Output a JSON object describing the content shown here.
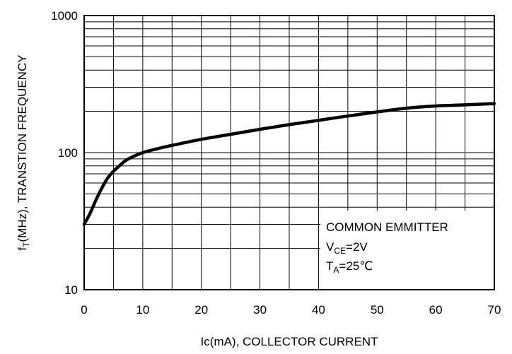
{
  "chart_data": {
    "type": "line",
    "title": "",
    "xlabel": "Ic(mA), COLLECTOR CURRENT",
    "ylabel": {
      "pre": "f",
      "sub": "T",
      "post": "(MHz), TRANSTION FREQUENCY"
    },
    "xlim": [
      0,
      70
    ],
    "ylim": [
      10,
      1000
    ],
    "y_scale": "log",
    "grid": true,
    "x_ticks": [
      0,
      10,
      20,
      30,
      40,
      50,
      60,
      70
    ],
    "y_ticks": [
      10,
      100,
      1000
    ],
    "annotation": {
      "line1": "COMMON EMMITTER",
      "line2": {
        "pre": "V",
        "sub": "CE",
        "post": "=2V"
      },
      "line3": {
        "pre": "T",
        "sub": "A",
        "post": "=25℃"
      }
    },
    "series": [
      {
        "color": "#000000",
        "points": [
          [
            0,
            30
          ],
          [
            1,
            36
          ],
          [
            2,
            45
          ],
          [
            3,
            55
          ],
          [
            4,
            65
          ],
          [
            5,
            73
          ],
          [
            6,
            80
          ],
          [
            7,
            87
          ],
          [
            8,
            92
          ],
          [
            10,
            100
          ],
          [
            13,
            108
          ],
          [
            15,
            113
          ],
          [
            20,
            125
          ],
          [
            25,
            136
          ],
          [
            30,
            148
          ],
          [
            35,
            160
          ],
          [
            40,
            172
          ],
          [
            45,
            185
          ],
          [
            50,
            198
          ],
          [
            55,
            211
          ],
          [
            60,
            219
          ],
          [
            65,
            223
          ],
          [
            70,
            228
          ]
        ]
      }
    ]
  }
}
